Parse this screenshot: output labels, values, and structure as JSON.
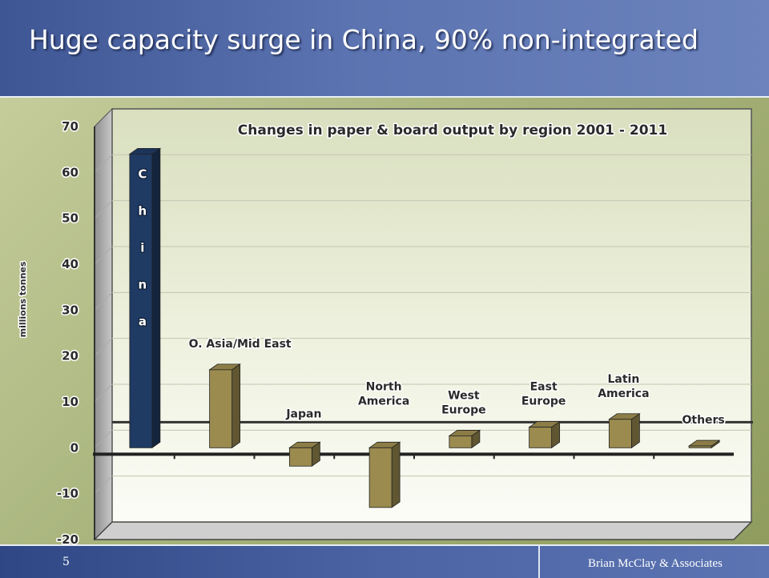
{
  "slide": {
    "title": "Huge capacity surge in China, 90% non-integrated",
    "page_number": "5",
    "footer": "Brian McClay & Associates"
  },
  "colors": {
    "header": "#5b73b0",
    "chart_background": "#a8b47c",
    "plot_background": "#f3f6ea",
    "china_bar": "#1f3a63",
    "other_bars": "#9b8b4f"
  },
  "chart_data": {
    "type": "bar",
    "title": "Changes in paper & board output by region 2001 - 2011",
    "xlabel": "",
    "ylabel": "millions tonnes",
    "ylim": [
      -20,
      70
    ],
    "yticks": [
      -20,
      -10,
      0,
      10,
      20,
      30,
      40,
      50,
      60,
      70
    ],
    "grid": true,
    "categories": [
      {
        "label": "China",
        "label_style": "vertical-in-bar",
        "value": 64
      },
      {
        "label": "O. Asia/Mid East",
        "label_style": "above",
        "value": 17
      },
      {
        "label": "Japan",
        "label_style": "above",
        "value": -4
      },
      {
        "label": "North America",
        "label_style": "above",
        "value": -13
      },
      {
        "label": "West Europe",
        "label_style": "above",
        "value": 2.6
      },
      {
        "label": "East Europe",
        "label_style": "above",
        "value": 4.5
      },
      {
        "label": "Latin America",
        "label_style": "above",
        "value": 6.2
      },
      {
        "label": "Others",
        "label_style": "above",
        "value": 0.4
      }
    ]
  }
}
